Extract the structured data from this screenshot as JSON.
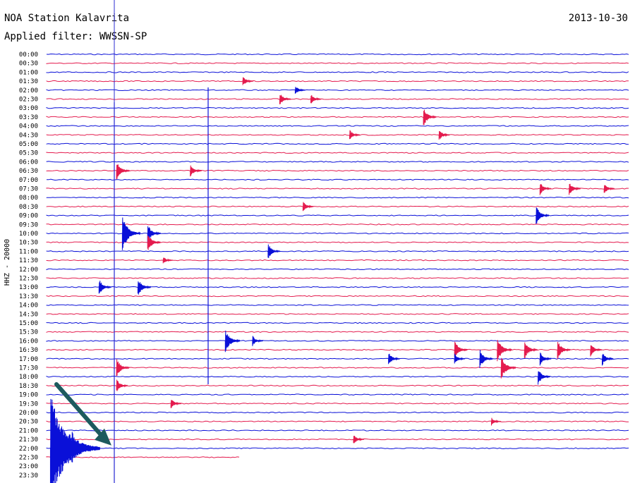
{
  "header": {
    "station": "NOA Station Kalavrita",
    "filter": "Applied filter: WWSSN-SP",
    "date": "2013-10-30"
  },
  "colors": {
    "blue": "#0a10d8",
    "red": "#e41b4e",
    "arrow": "#1d5a5e",
    "cursor": "#2b2bd0"
  },
  "chart_data": {
    "type": "line",
    "title": "NOA Station Kalavrita",
    "subtitle": "Applied filter: WWSSN-SP",
    "ylabel": "HHZ - 20000",
    "date": "2013-10-30",
    "row_labels": [
      "00:00",
      "00:30",
      "01:00",
      "01:30",
      "02:00",
      "02:30",
      "03:00",
      "03:30",
      "04:00",
      "04:30",
      "05:00",
      "05:30",
      "06:00",
      "06:30",
      "07:00",
      "07:30",
      "08:00",
      "08:30",
      "09:00",
      "09:30",
      "10:00",
      "10:30",
      "11:00",
      "11:30",
      "12:00",
      "12:30",
      "13:00",
      "13:30",
      "14:00",
      "14:30",
      "15:00",
      "15:30",
      "16:00",
      "16:30",
      "17:00",
      "17:30",
      "18:00",
      "18:30",
      "19:00",
      "19:30",
      "20:00",
      "20:30",
      "21:00",
      "21:30",
      "22:00",
      "22:30",
      "23:00",
      "23:30"
    ],
    "row_colors": [
      "blue",
      "red"
    ],
    "x_minutes_per_row": 30,
    "events": [
      {
        "row": 3,
        "min": 10.1,
        "amp": 8
      },
      {
        "row": 4,
        "min": 12.8,
        "amp": 7
      },
      {
        "row": 5,
        "min": 12.0,
        "amp": 10
      },
      {
        "row": 5,
        "min": 13.6,
        "amp": 8
      },
      {
        "row": 7,
        "min": 19.4,
        "amp": 14
      },
      {
        "row": 9,
        "min": 15.6,
        "amp": 8
      },
      {
        "row": 9,
        "min": 20.2,
        "amp": 9
      },
      {
        "row": 13,
        "min": 3.6,
        "amp": 14
      },
      {
        "row": 13,
        "min": 7.4,
        "amp": 10
      },
      {
        "row": 15,
        "min": 25.4,
        "amp": 10
      },
      {
        "row": 15,
        "min": 26.9,
        "amp": 10
      },
      {
        "row": 15,
        "min": 28.7,
        "amp": 8
      },
      {
        "row": 17,
        "min": 13.2,
        "amp": 8
      },
      {
        "row": 18,
        "min": 25.2,
        "amp": 14
      },
      {
        "row": 20,
        "min": 3.9,
        "amp": 26
      },
      {
        "row": 20,
        "min": 5.2,
        "amp": 14
      },
      {
        "row": 21,
        "min": 5.2,
        "amp": 14
      },
      {
        "row": 22,
        "min": 11.4,
        "amp": 12
      },
      {
        "row": 23,
        "min": 6.0,
        "amp": 6
      },
      {
        "row": 26,
        "min": 2.7,
        "amp": 12
      },
      {
        "row": 26,
        "min": 4.7,
        "amp": 14
      },
      {
        "row": 32,
        "min": 9.2,
        "amp": 18
      },
      {
        "row": 32,
        "min": 10.6,
        "amp": 8
      },
      {
        "row": 33,
        "min": 21.0,
        "amp": 14
      },
      {
        "row": 33,
        "min": 23.2,
        "amp": 18
      },
      {
        "row": 33,
        "min": 24.6,
        "amp": 14
      },
      {
        "row": 33,
        "min": 26.3,
        "amp": 14
      },
      {
        "row": 33,
        "min": 28.0,
        "amp": 10
      },
      {
        "row": 34,
        "min": 17.6,
        "amp": 10
      },
      {
        "row": 34,
        "min": 21.0,
        "amp": 8
      },
      {
        "row": 34,
        "min": 22.3,
        "amp": 14
      },
      {
        "row": 34,
        "min": 25.4,
        "amp": 10
      },
      {
        "row": 34,
        "min": 28.6,
        "amp": 10
      },
      {
        "row": 35,
        "min": 3.6,
        "amp": 14
      },
      {
        "row": 35,
        "min": 23.4,
        "amp": 18
      },
      {
        "row": 36,
        "min": 25.3,
        "amp": 12
      },
      {
        "row": 37,
        "min": 3.6,
        "amp": 10
      },
      {
        "row": 39,
        "min": 6.4,
        "amp": 8
      },
      {
        "row": 41,
        "min": 22.9,
        "amp": 6
      },
      {
        "row": 43,
        "min": 15.8,
        "amp": 8
      },
      {
        "row": 44,
        "min": 0.2,
        "amp": 78
      },
      {
        "row": 44,
        "min": 1.3,
        "amp": 26
      }
    ],
    "arrow": {
      "row": 44,
      "min": 0.0
    }
  }
}
